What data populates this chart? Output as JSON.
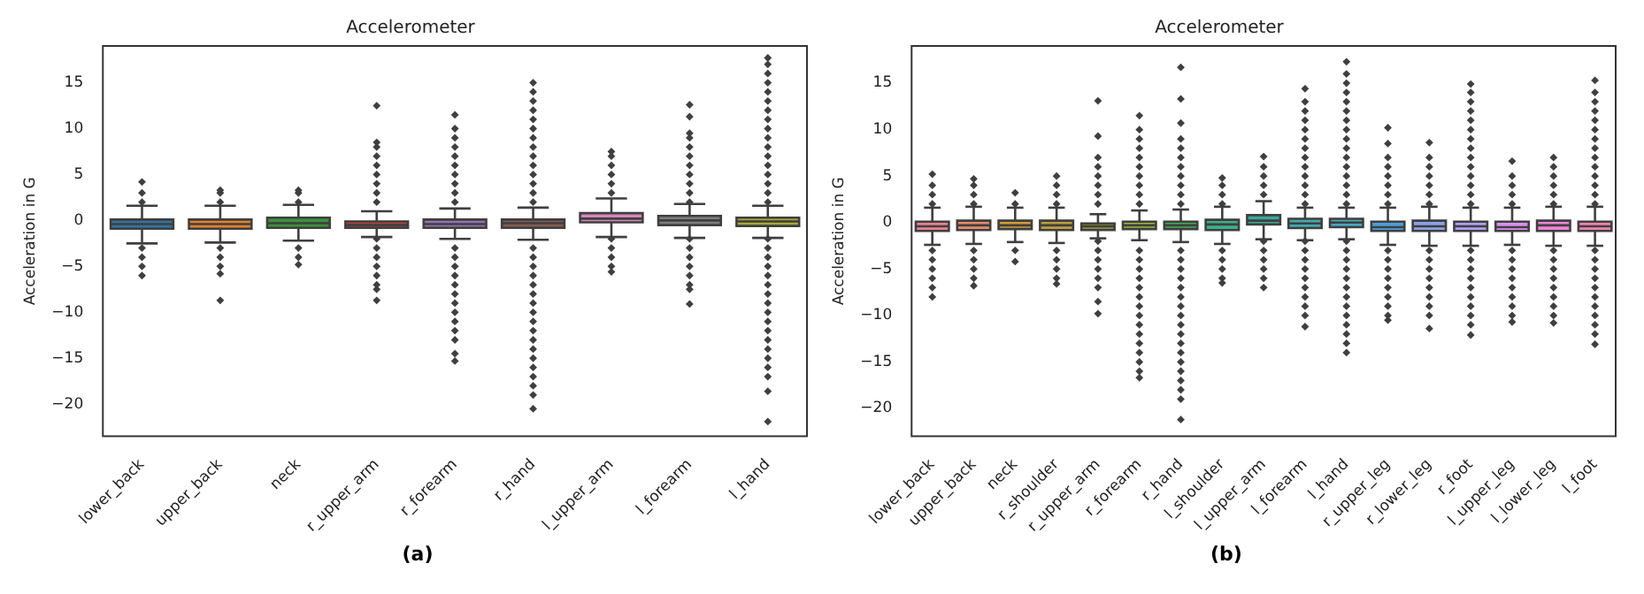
{
  "chart_data": [
    {
      "type": "box",
      "title": "Accelerometer",
      "ylabel": "Acceleration in G",
      "annotations": [
        "(a)"
      ],
      "marker": "diamond",
      "categories": [
        "lower_back",
        "upper_back",
        "neck",
        "r_upper_arm",
        "r_forearm",
        "r_hand",
        "l_upper_arm",
        "l_forearm",
        "l_hand"
      ],
      "colors": [
        "#3274a1",
        "#e1812c",
        "#3a923a",
        "#c03d3e",
        "#9372b2",
        "#845b53",
        "#d684bd",
        "#7f7f7f",
        "#a9aa35"
      ],
      "ylim": [
        -23.5,
        19
      ],
      "yticks": [
        {
          "value": -20,
          "label": "−20"
        },
        {
          "value": -15,
          "label": "−15"
        },
        {
          "value": -10,
          "label": "−10"
        },
        {
          "value": -5,
          "label": "−5"
        },
        0,
        5,
        10,
        15
      ],
      "boxes": [
        {
          "low": -2.5,
          "q1": -0.9,
          "median": -0.4,
          "q3": 0.1,
          "high": 1.6,
          "outliers": [
            2,
            3,
            4.2,
            -3,
            -4,
            -5,
            -6
          ]
        },
        {
          "low": -2.4,
          "q1": -0.9,
          "median": -0.4,
          "q3": 0.1,
          "high": 1.6,
          "outliers": [
            2,
            3,
            3.3,
            -3,
            -4,
            -5,
            -5.8,
            -8.7
          ]
        },
        {
          "low": -2.2,
          "q1": -0.8,
          "median": -0.3,
          "q3": 0.3,
          "high": 1.7,
          "outliers": [
            2,
            3,
            3.3,
            -3,
            -4,
            -4.8
          ]
        },
        {
          "low": -1.8,
          "q1": -0.8,
          "median": -0.5,
          "q3": -0.1,
          "high": 1.0,
          "outliers": [
            2,
            3,
            4,
            5,
            6,
            7,
            8,
            8.5,
            12.5,
            -2,
            -3,
            -4,
            -5,
            -6,
            -7,
            -7.5,
            -8.7
          ]
        },
        {
          "low": -2.0,
          "q1": -0.8,
          "median": -0.4,
          "q3": 0.1,
          "high": 1.3,
          "outliers": [
            2,
            3,
            4,
            5,
            6,
            7,
            8,
            9,
            10,
            11.5,
            -3,
            -4,
            -5,
            -6,
            -7,
            -8,
            -9,
            -10,
            -11,
            -12,
            -13,
            -14.5,
            -15.3
          ]
        },
        {
          "low": -2.1,
          "q1": -0.8,
          "median": -0.3,
          "q3": 0.1,
          "high": 1.4,
          "outliers": [
            2,
            3,
            4,
            5,
            6,
            7,
            8,
            9,
            10,
            11,
            12,
            13,
            14,
            15,
            -3,
            -4,
            -5,
            -6,
            -7,
            -8,
            -9,
            -10,
            -11,
            -12,
            -13,
            -14,
            -15,
            -16,
            -17,
            -18,
            -19,
            -20.5
          ]
        },
        {
          "low": -1.8,
          "q1": -0.2,
          "median": 0.2,
          "q3": 0.8,
          "high": 2.4,
          "outliers": [
            3,
            4,
            5,
            6,
            7,
            7.5,
            -2,
            -3,
            -4,
            -5,
            -5.6
          ]
        },
        {
          "low": -1.9,
          "q1": -0.5,
          "median": 0.0,
          "q3": 0.5,
          "high": 1.8,
          "outliers": [
            2,
            3,
            4,
            5,
            6,
            7,
            8,
            9,
            9.5,
            11.3,
            12.6,
            -2,
            -3,
            -4,
            -5,
            -6,
            -7,
            -7.5,
            -9.1
          ]
        },
        {
          "low": -1.9,
          "q1": -0.6,
          "median": -0.1,
          "q3": 0.3,
          "high": 1.6,
          "outliers": [
            2,
            3,
            4,
            5,
            6,
            7,
            8,
            9,
            10,
            11,
            12,
            13,
            14,
            15,
            16,
            17,
            17.7,
            -2,
            -3,
            -4,
            -5,
            -6,
            -7,
            -8,
            -9,
            -10,
            -11,
            -12,
            -13,
            -14,
            -15,
            -16,
            -17,
            -18.6,
            -21.9
          ]
        }
      ]
    },
    {
      "type": "box",
      "title": "Accelerometer",
      "ylabel": "Acceleration in G",
      "annotations": [
        "(b)"
      ],
      "marker": "diamond",
      "categories": [
        "lower_back",
        "upper_back",
        "neck",
        "r_shoulder",
        "r_upper_arm",
        "r_forearm",
        "r_hand",
        "l_shoulder",
        "l_upper_arm",
        "l_forearm",
        "l_hand",
        "r_upper_leg",
        "r_lower_leg",
        "r_foot",
        "l_upper_leg",
        "l_lower_leg",
        "l_foot"
      ],
      "colors": [
        "#e8828f",
        "#e88a6a",
        "#d69b3b",
        "#bd9f3c",
        "#8c8c3a",
        "#9dba3e",
        "#3fb04e",
        "#3daf8a",
        "#3aa99a",
        "#40aaaf",
        "#46a7be",
        "#4c9fd9",
        "#8aa2e8",
        "#b09ef2",
        "#da8ef0",
        "#ee84d6",
        "#f282b2"
      ],
      "ylim": [
        -23,
        19
      ],
      "yticks": [
        {
          "value": -20,
          "label": "−20"
        },
        {
          "value": -15,
          "label": "−15"
        },
        {
          "value": -10,
          "label": "−10"
        },
        {
          "value": -5,
          "label": "−5"
        },
        0,
        5,
        10,
        15
      ],
      "boxes": [
        {
          "low": -2.4,
          "q1": -0.9,
          "median": -0.4,
          "q3": 0.1,
          "high": 1.6,
          "outliers": [
            2,
            3,
            4,
            5.2,
            -3,
            -4,
            -5,
            -6,
            -7,
            -8
          ]
        },
        {
          "low": -2.3,
          "q1": -0.8,
          "median": -0.3,
          "q3": 0.2,
          "high": 1.7,
          "outliers": [
            2,
            3,
            4,
            4.7,
            -3,
            -4,
            -5,
            -6,
            -6.8
          ]
        },
        {
          "low": -2.1,
          "q1": -0.7,
          "median": -0.3,
          "q3": 0.2,
          "high": 1.6,
          "outliers": [
            2,
            3.2,
            -3,
            -4.2
          ]
        },
        {
          "low": -2.2,
          "q1": -0.8,
          "median": -0.3,
          "q3": 0.2,
          "high": 1.6,
          "outliers": [
            2,
            3,
            4,
            5,
            -3,
            -4,
            -5,
            -6,
            -6.6
          ]
        },
        {
          "low": -1.7,
          "q1": -0.8,
          "median": -0.4,
          "q3": -0.1,
          "high": 0.9,
          "outliers": [
            2,
            3,
            4,
            5,
            6,
            7,
            9.3,
            13.1,
            -2,
            -3,
            -4,
            -5,
            -6,
            -7,
            -8.5,
            -9.8
          ]
        },
        {
          "low": -1.9,
          "q1": -0.7,
          "median": -0.3,
          "q3": 0.1,
          "high": 1.3,
          "outliers": [
            2,
            3,
            4,
            5,
            6,
            7,
            8,
            9,
            10,
            11.5,
            -3,
            -4,
            -5,
            -6,
            -7,
            -8,
            -9,
            -10,
            -11,
            -12,
            -13,
            -14,
            -15,
            -16,
            -16.7
          ]
        },
        {
          "low": -2.1,
          "q1": -0.7,
          "median": -0.3,
          "q3": 0.1,
          "high": 1.4,
          "outliers": [
            2,
            3,
            4,
            5,
            6,
            7,
            8,
            9,
            10.7,
            13.3,
            16.7,
            -3,
            -4,
            -5,
            -6,
            -7,
            -8,
            -9,
            -10,
            -11,
            -12,
            -13,
            -14,
            -15,
            -16,
            -17,
            -18,
            -19,
            -21.2
          ]
        },
        {
          "low": -2.3,
          "q1": -0.8,
          "median": -0.2,
          "q3": 0.3,
          "high": 1.7,
          "outliers": [
            2,
            3,
            4,
            4.8,
            -3,
            -4,
            -5,
            -6,
            -6.5
          ]
        },
        {
          "low": -1.8,
          "q1": -0.2,
          "median": 0.2,
          "q3": 0.8,
          "high": 2.3,
          "outliers": [
            3,
            4,
            5,
            6,
            7.1,
            -2,
            -3,
            -4,
            -5,
            -6,
            -7
          ]
        },
        {
          "low": -1.9,
          "q1": -0.6,
          "median": -0.1,
          "q3": 0.4,
          "high": 1.6,
          "outliers": [
            2,
            3,
            4,
            5,
            6,
            7,
            8,
            9,
            10,
            11,
            12,
            13,
            14.4,
            -2,
            -3,
            -4,
            -5,
            -6,
            -7,
            -8,
            -9,
            -10,
            -11.2
          ]
        },
        {
          "low": -1.8,
          "q1": -0.5,
          "median": 0.0,
          "q3": 0.4,
          "high": 1.6,
          "outliers": [
            2,
            3,
            4,
            5,
            6,
            7,
            8,
            9,
            10,
            11,
            12,
            13,
            14,
            15,
            16,
            17.3,
            -2,
            -3,
            -4,
            -5,
            -6,
            -7,
            -8,
            -9,
            -10,
            -11,
            -12,
            -13,
            -14
          ]
        },
        {
          "low": -2.4,
          "q1": -0.9,
          "median": -0.5,
          "q3": 0.1,
          "high": 1.6,
          "outliers": [
            2,
            3,
            4,
            5,
            6,
            7,
            8.5,
            10.2,
            -3,
            -4,
            -5,
            -6,
            -7,
            -8,
            -9,
            -10,
            -10.5
          ]
        },
        {
          "low": -2.5,
          "q1": -0.9,
          "median": -0.4,
          "q3": 0.2,
          "high": 1.7,
          "outliers": [
            2,
            3,
            4,
            5,
            6,
            7,
            8.6,
            -3,
            -4,
            -5,
            -6,
            -7,
            -8,
            -9,
            -10,
            -11.4
          ]
        },
        {
          "low": -2.5,
          "q1": -0.9,
          "median": -0.4,
          "q3": 0.1,
          "high": 1.6,
          "outliers": [
            2,
            3,
            4,
            5,
            6,
            7,
            8,
            9,
            10,
            11,
            12,
            13,
            14,
            14.9,
            -3,
            -4,
            -5,
            -6,
            -7,
            -8,
            -9,
            -10,
            -11,
            -12.1
          ]
        },
        {
          "low": -2.4,
          "q1": -0.9,
          "median": -0.5,
          "q3": 0.1,
          "high": 1.6,
          "outliers": [
            2,
            3,
            4,
            5,
            6.6,
            -3,
            -4,
            -5,
            -6,
            -7,
            -8,
            -9,
            -10,
            -10.7
          ]
        },
        {
          "low": -2.5,
          "q1": -0.9,
          "median": -0.3,
          "q3": 0.2,
          "high": 1.7,
          "outliers": [
            2,
            3,
            4,
            5,
            6,
            7,
            -3,
            -4,
            -5,
            -6,
            -7,
            -8,
            -9,
            -10,
            -10.8
          ]
        },
        {
          "low": -2.5,
          "q1": -0.9,
          "median": -0.4,
          "q3": 0.1,
          "high": 1.7,
          "outliers": [
            2,
            3,
            4,
            5,
            6,
            7,
            8,
            9,
            10,
            11,
            12,
            13,
            14,
            15.3,
            -3,
            -4,
            -5,
            -6,
            -7,
            -8,
            -9,
            -10,
            -11,
            -12,
            -13.1
          ]
        }
      ]
    }
  ]
}
